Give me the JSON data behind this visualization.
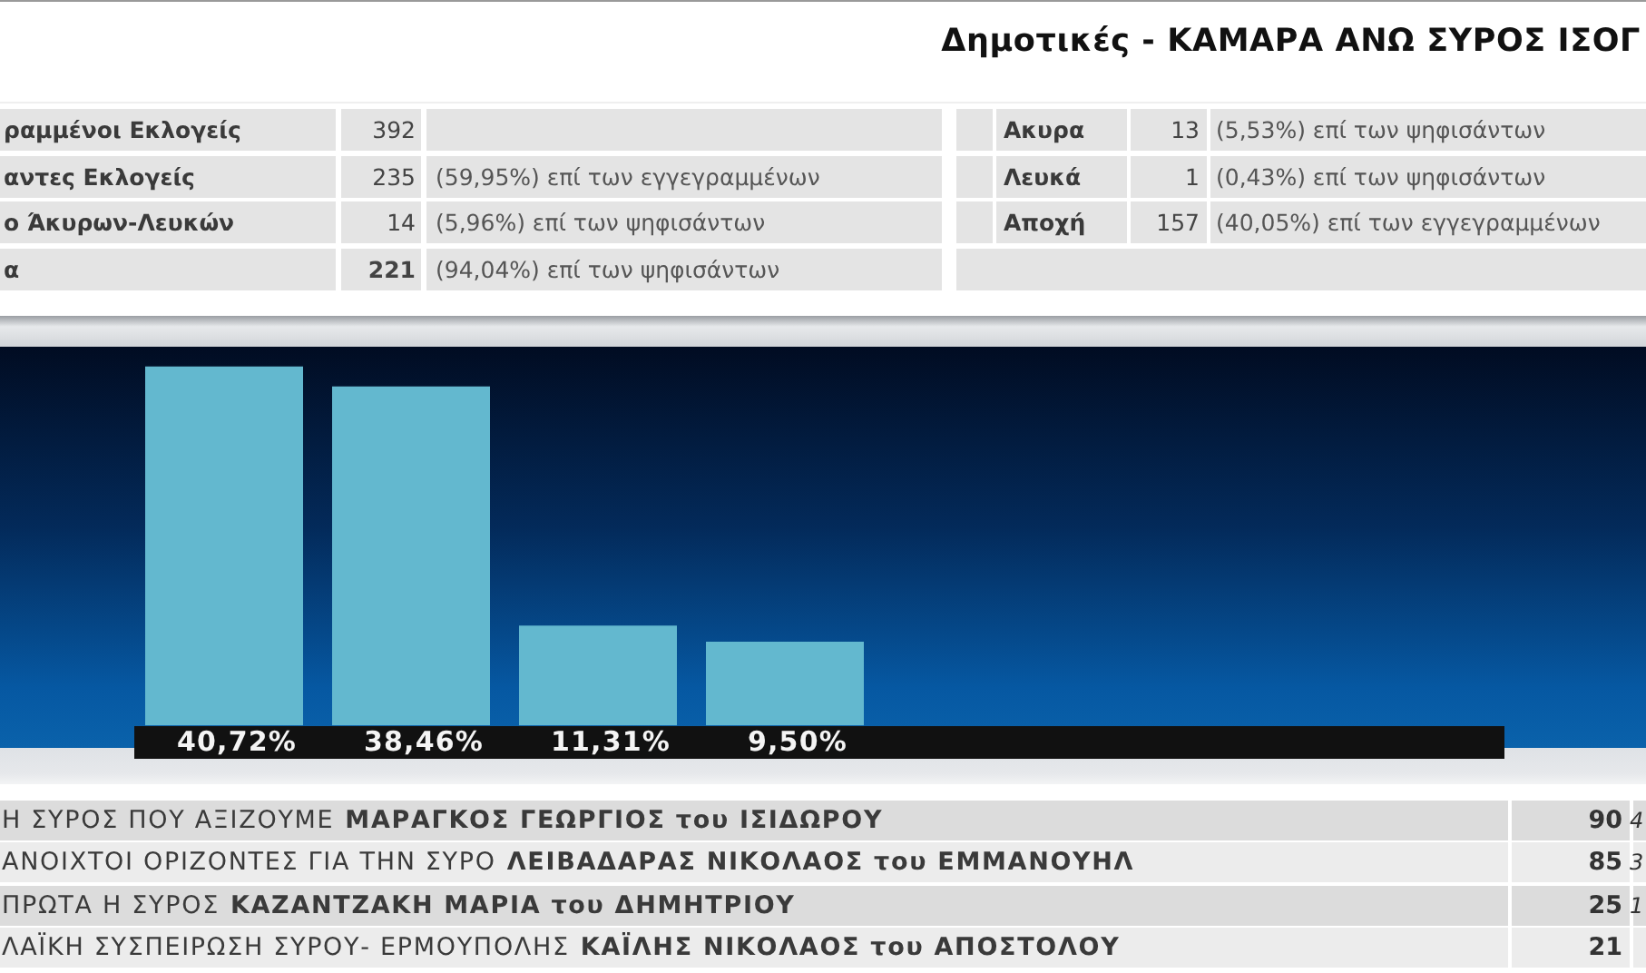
{
  "chart_data": {
    "type": "bar",
    "title": "Δημοτικές - ΚΑΜΑΡΑ ΑΝΩ ΣΥΡΟΣ ΙΣΟΓ",
    "categories": [
      null,
      null,
      null,
      null
    ],
    "values": [
      40.72,
      38.46,
      11.31,
      9.5
    ],
    "color": "#63b8cf",
    "value_labels": [
      "40,72%",
      "38,46%",
      "11,31%",
      "9,50%"
    ],
    "annotations": [
      "ραμμένοι Εκλογείς",
      "392",
      "Ακυρα",
      "13",
      "(5,53%) επί των ψηφισάντων",
      "αντες Εκλογείς",
      "235",
      "(59,95%) επί των εγγεγραμμένων",
      "Λευκά",
      "1",
      "(0,43%) επί των ψηφισάντων",
      "ο Άκυρων-Λευκών",
      "14",
      "(5,96%) επί των ψηφισάντων",
      "Αποχή",
      "157",
      "(40,05%) επί των εγγεγραμμένων",
      "α",
      "221",
      "(94,04%) επί των ψηφισάντων",
      "Η ΣΥΡΟΣ ΠΟΥ ΑΞΙΖΟΥΜΕ",
      "ΜΑΡΑΓΚΟΣ ΓΕΩΡΓΙΟΣ του ΙΣΙΔΩΡΟΥ",
      "90",
      "4",
      "ΑΝΟΙΧΤΟΙ ΟΡΙΖΟΝΤΕΣ ΓΙΑ ΤΗΝ ΣΥΡΟ",
      "ΛΕΙΒΑΔΑΡΑΣ ΝΙΚΟΛΑΟΣ του ΕΜΜΑΝΟΥΗΛ",
      "85",
      "3",
      "ΠΡΩΤΑ Η ΣΥΡΟΣ",
      "ΚΑΖΑΝΤΖΑΚΗ ΜΑΡΙΑ του ΔΗΜΗΤΡΙΟΥ",
      "25",
      "1",
      "ΛΑΪΚΗ ΣΥΣΠΕΙΡΩΣΗ ΣΥΡΟΥ- ΕΡΜΟΥΠΟΛΗΣ",
      "ΚΑΪΛΗΣ ΝΙΚΟΛΑΟΣ του ΑΠΟΣΤΟΛΟΥ",
      "21"
    ]
  }
}
